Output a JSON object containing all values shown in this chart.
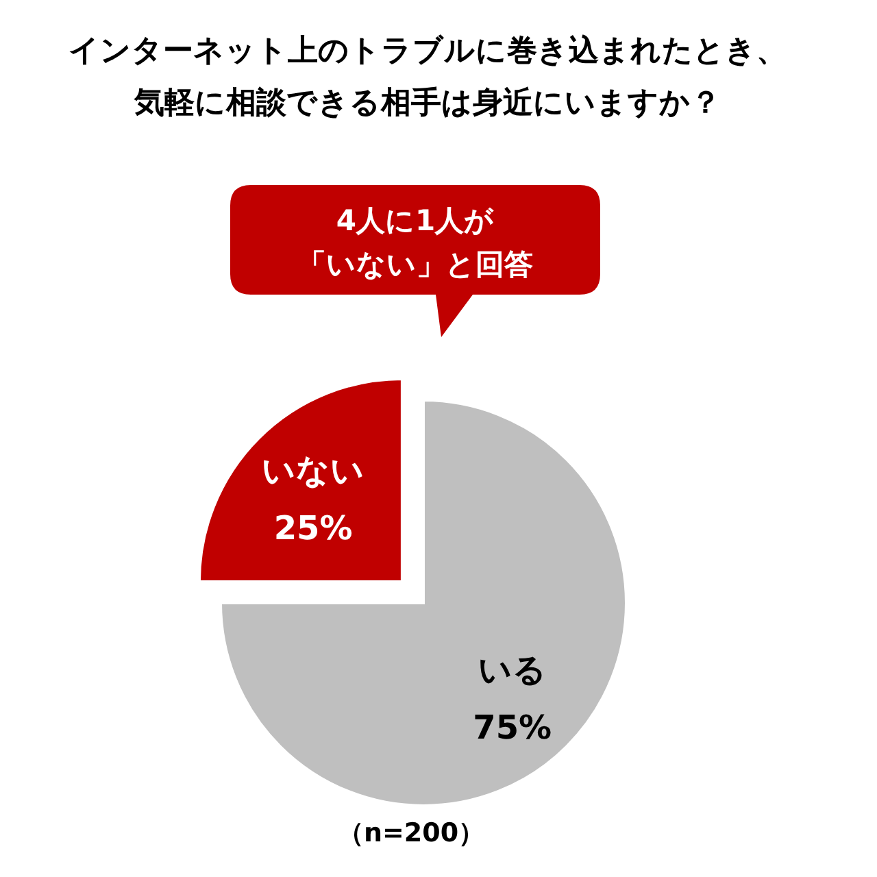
{
  "chart_data": {
    "type": "pie",
    "title": "インターネット上のトラブルに巻き込まれたとき、気軽に相談できる相手は身近にいますか？",
    "categories": [
      "いない",
      "いる"
    ],
    "values": [
      25,
      75
    ],
    "colors": [
      "#c00000",
      "#bfbfbf"
    ],
    "value_labels": [
      "25%",
      "75%"
    ],
    "annotations": [
      "4人に1人が",
      "「いない」と回答",
      "（n=200）"
    ]
  }
}
